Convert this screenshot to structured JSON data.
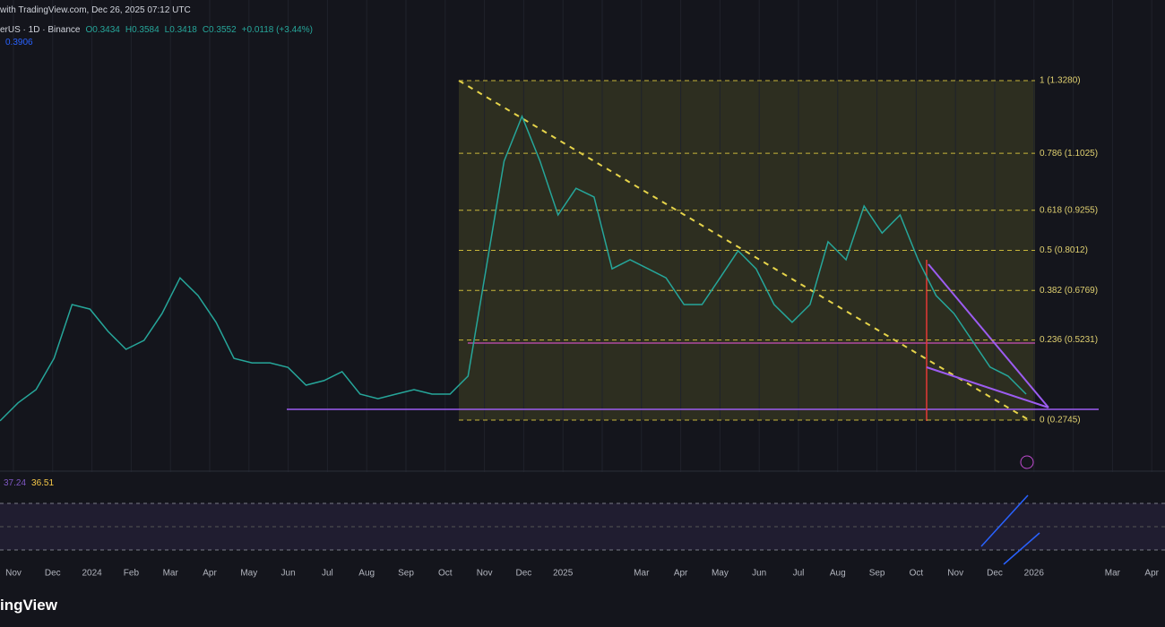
{
  "header": {
    "source": "with TradingView.com, Dec 26, 2025 07:12 UTC",
    "symbol": "erUS · 1D · Binance",
    "ohlc": [
      "O0.3434",
      "H0.3584",
      "L0.3418",
      "C0.3552",
      "+0.0118 (+3.44%)"
    ],
    "ma": "0.3906"
  },
  "chart": {
    "ylim": [
      0.2745,
      1.328
    ],
    "fib_levels": [
      {
        "value": 1.328,
        "label": "1 (1.3280)"
      },
      {
        "value": 1.1025,
        "label": "0.786 (1.1025)"
      },
      {
        "value": 0.9255,
        "label": "0.618 (0.9255)"
      },
      {
        "value": 0.8012,
        "label": "0.5 (0.8012)"
      },
      {
        "value": 0.6769,
        "label": "0.382 (0.6769)"
      },
      {
        "value": 0.5231,
        "label": "0.236 (0.5231)"
      },
      {
        "value": 0.2745,
        "label": "0 (0.2745)"
      }
    ],
    "closes": [
      0.272,
      0.328,
      0.369,
      0.466,
      0.633,
      0.619,
      0.55,
      0.494,
      0.522,
      0.605,
      0.716,
      0.661,
      0.578,
      0.466,
      0.452,
      0.452,
      0.438,
      0.383,
      0.397,
      0.425,
      0.355,
      0.341,
      0.355,
      0.369,
      0.355,
      0.355,
      0.411,
      0.744,
      1.078,
      1.217,
      1.078,
      0.911,
      0.994,
      0.967,
      0.744,
      0.772,
      0.744,
      0.716,
      0.633,
      0.633,
      0.716,
      0.8,
      0.744,
      0.633,
      0.578,
      0.633,
      0.828,
      0.772,
      0.939,
      0.855,
      0.911,
      0.772,
      0.661,
      0.605,
      0.522,
      0.439,
      0.411,
      0.355
    ]
  },
  "rsi": {
    "values": [
      "37.24",
      "36.51"
    ]
  },
  "x_axis": [
    "Nov",
    "Dec",
    "2024",
    "Feb",
    "Mar",
    "Apr",
    "May",
    "Jun",
    "Jul",
    "Aug",
    "Sep",
    "Oct",
    "Nov",
    "Dec",
    "2025",
    null,
    "Mar",
    "Apr",
    "May",
    "Jun",
    "Jul",
    "Aug",
    "Sep",
    "Oct",
    "Nov",
    "Dec",
    "2026",
    null,
    "Mar",
    "Apr"
  ],
  "footer": {
    "brand": "ingView"
  }
}
